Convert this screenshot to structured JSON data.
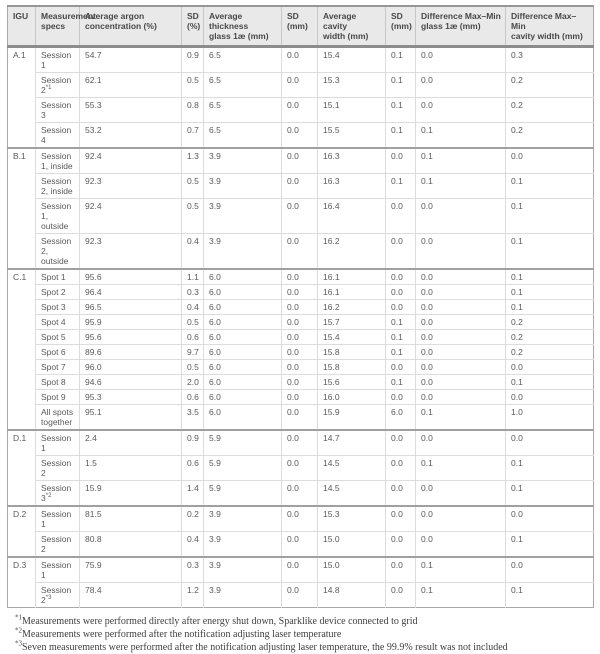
{
  "table": {
    "headers": [
      "IGU",
      "Measurement\nspecs",
      "Average argon\nconcentration (%)",
      "SD\n(%)",
      "Average thickness\nglass 1æ (mm)",
      "SD\n(mm)",
      "Average cavity\nwidth (mm)",
      "SD\n(mm)",
      "Difference Max–Min\nglass 1æ (mm)",
      "Difference Max–Min\ncavity width (mm)"
    ],
    "groups": [
      {
        "igu": "A.1",
        "rows": [
          {
            "spec": "Session 1",
            "sup": "",
            "values": [
              "54.7",
              "0.9",
              "6.5",
              "0.0",
              "15.4",
              "0.1",
              "0.0",
              "0.3"
            ]
          },
          {
            "spec": "Session 2",
            "sup": "*1",
            "values": [
              "62.1",
              "0.5",
              "6.5",
              "0.0",
              "15.3",
              "0.1",
              "0.0",
              "0.2"
            ]
          },
          {
            "spec": "Session 3",
            "sup": "",
            "values": [
              "55.3",
              "0.8",
              "6.5",
              "0.0",
              "15.1",
              "0.1",
              "0.0",
              "0.2"
            ]
          },
          {
            "spec": "Session 4",
            "sup": "",
            "values": [
              "53.2",
              "0.7",
              "6.5",
              "0.0",
              "15.5",
              "0.1",
              "0.1",
              "0.2"
            ]
          }
        ]
      },
      {
        "igu": "B.1",
        "rows": [
          {
            "spec": "Session 1, inside",
            "sup": "",
            "values": [
              "92.4",
              "1.3",
              "3.9",
              "0.0",
              "16.3",
              "0.0",
              "0.1",
              "0.0"
            ]
          },
          {
            "spec": "Session 2, inside",
            "sup": "",
            "values": [
              "92.3",
              "0.5",
              "3.9",
              "0.0",
              "16.3",
              "0.1",
              "0.1",
              "0.1"
            ]
          },
          {
            "spec": "Session 1,\noutside",
            "sup": "",
            "values": [
              "92.4",
              "0.5",
              "3.9",
              "0.0",
              "16.4",
              "0.0",
              "0.0",
              "0.1"
            ]
          },
          {
            "spec": "Session 2,\noutside",
            "sup": "",
            "values": [
              "92.3",
              "0.4",
              "3.9",
              "0.0",
              "16.2",
              "0.0",
              "0.0",
              "0.1"
            ]
          }
        ]
      },
      {
        "igu": "C.1",
        "rows": [
          {
            "spec": "Spot 1",
            "sup": "",
            "values": [
              "95.6",
              "1.1",
              "6.0",
              "0.0",
              "16.1",
              "0.0",
              "0.0",
              "0.1"
            ]
          },
          {
            "spec": "Spot 2",
            "sup": "",
            "values": [
              "96.4",
              "0.3",
              "6.0",
              "0.0",
              "16.1",
              "0.0",
              "0.0",
              "0.1"
            ]
          },
          {
            "spec": "Spot 3",
            "sup": "",
            "values": [
              "96.5",
              "0.4",
              "6.0",
              "0.0",
              "16.2",
              "0.0",
              "0.0",
              "0.1"
            ]
          },
          {
            "spec": "Spot 4",
            "sup": "",
            "values": [
              "95.9",
              "0.5",
              "6.0",
              "0.0",
              "15.7",
              "0.1",
              "0.0",
              "0.2"
            ]
          },
          {
            "spec": "Spot 5",
            "sup": "",
            "values": [
              "95.6",
              "0.6",
              "6.0",
              "0.0",
              "15.4",
              "0.1",
              "0.0",
              "0.2"
            ]
          },
          {
            "spec": "Spot 6",
            "sup": "",
            "values": [
              "89.6",
              "9.7",
              "6.0",
              "0.0",
              "15.8",
              "0.1",
              "0.0",
              "0.2"
            ]
          },
          {
            "spec": "Spot 7",
            "sup": "",
            "values": [
              "96.0",
              "0.5",
              "6.0",
              "0.0",
              "15.8",
              "0.0",
              "0.0",
              "0.0"
            ]
          },
          {
            "spec": "Spot 8",
            "sup": "",
            "values": [
              "94.6",
              "2.0",
              "6.0",
              "0.0",
              "15.6",
              "0.1",
              "0.0",
              "0.1"
            ]
          },
          {
            "spec": "Spot 9",
            "sup": "",
            "values": [
              "95.3",
              "0.6",
              "6.0",
              "0.0",
              "16.0",
              "0.0",
              "0.0",
              "0.0"
            ]
          },
          {
            "spec": "All spots\ntogether",
            "sup": "",
            "values": [
              "95.1",
              "3.5",
              "6.0",
              "0.0",
              "15.9",
              "6.0",
              "0.1",
              "1.0"
            ]
          }
        ]
      },
      {
        "igu": "D.1",
        "rows": [
          {
            "spec": "Session 1",
            "sup": "",
            "values": [
              "2.4",
              "0.9",
              "5.9",
              "0.0",
              "14.7",
              "0.0",
              "0.0",
              "0.0"
            ]
          },
          {
            "spec": "Session 2",
            "sup": "",
            "values": [
              "1.5",
              "0.6",
              "5.9",
              "0.0",
              "14.5",
              "0.0",
              "0.1",
              "0.1"
            ]
          },
          {
            "spec": "Session 3",
            "sup": "*2",
            "values": [
              "15.9",
              "1.4",
              "5.9",
              "0.0",
              "14.5",
              "0.0",
              "0.0",
              "0.1"
            ]
          }
        ]
      },
      {
        "igu": "D.2",
        "rows": [
          {
            "spec": "Session 1",
            "sup": "",
            "values": [
              "81.5",
              "0.2",
              "3.9",
              "0.0",
              "15.3",
              "0.0",
              "0.0",
              "0.0"
            ]
          },
          {
            "spec": "Session 2",
            "sup": "",
            "values": [
              "80.8",
              "0.4",
              "3.9",
              "0.0",
              "15.0",
              "0.0",
              "0.0",
              "0.1"
            ]
          }
        ]
      },
      {
        "igu": "D.3",
        "rows": [
          {
            "spec": "Session 1",
            "sup": "",
            "values": [
              "75.9",
              "0.3",
              "3.9",
              "0.0",
              "15.0",
              "0.0",
              "0.1",
              "0.0"
            ]
          },
          {
            "spec": "Session 2",
            "sup": "*3",
            "values": [
              "78.4",
              "1.2",
              "3.9",
              "0.0",
              "14.8",
              "0.0",
              "0.1",
              "0.1"
            ]
          }
        ]
      }
    ]
  },
  "footnotes": [
    {
      "marker": "*1",
      "text": "Measurements were performed directly after energy shut down, Sparklike device connected to grid"
    },
    {
      "marker": "*2",
      "text": "Measurements were performed after the notification adjusting laser temperature"
    },
    {
      "marker": "*3",
      "text": "Seven measurements were performed after the notification adjusting laser temperature, the 99.9% result was not included"
    }
  ],
  "colors": {
    "header_bg": "#e9e9e9",
    "header_text": "#484848",
    "body_text": "#5a5a5a",
    "grid_border": "#dcdcdc",
    "group_border": "#a0a0a0",
    "header_rule": "#8c8c8c"
  }
}
